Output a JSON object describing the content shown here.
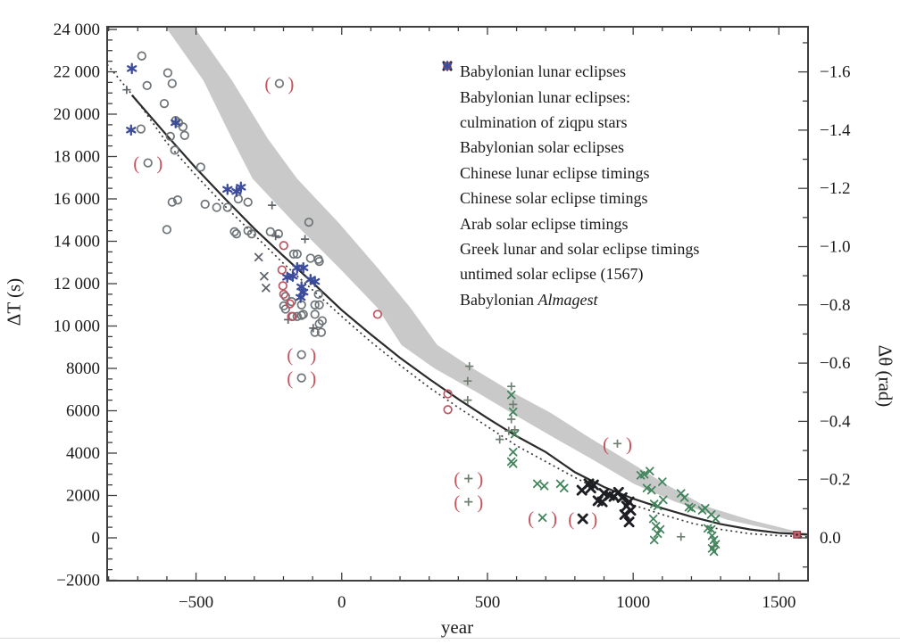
{
  "figure": {
    "xlabel": "year",
    "ylabel_left": "ΔT (s)",
    "ylabel_right": "Δθ (rad)"
  },
  "colors": {
    "frame": "#3f3f3f",
    "text": "#1a1a1a",
    "band": "#c9c9c9",
    "solid_curve": "#2b2b2b",
    "dashed_curve": "#3a3a3a",
    "parens": "#c3555e",
    "gray_marker": "#6e7478",
    "gray_dark_marker": "#5f646a",
    "green_gray_marker": "#6f7f72",
    "green_marker": "#43855c",
    "black_marker": "#1c1e22",
    "red_marker": "#c05662",
    "red_fill": "#c4636c",
    "blue_marker": "#3c4c9d"
  },
  "axes": {
    "x": {
      "min": -805,
      "max": 1600,
      "major_values": [
        -500,
        0,
        500,
        1000,
        1500
      ],
      "major_labels": [
        "−500",
        "0",
        "500",
        "1000",
        "1500"
      ],
      "minor_step": 100
    },
    "y_left": {
      "min": -2000,
      "max": 24000,
      "major_values": [
        24000,
        22000,
        20000,
        18000,
        16000,
        14000,
        12000,
        10000,
        8000,
        6000,
        4000,
        2000,
        0,
        -2000
      ],
      "major_labels": [
        "24 000",
        "22 000",
        "20 000",
        "18 000",
        "16 000",
        "14 000",
        "12 000",
        "10 000",
        "8000",
        "6000",
        "4000",
        "2000",
        "0",
        "−2000"
      ],
      "minor_step": 500
    },
    "y_right": {
      "major_values": [
        -1.6,
        -1.4,
        -1.2,
        -1.0,
        -0.8,
        -0.6,
        -0.4,
        -0.2,
        0.0
      ],
      "major_labels": [
        "−1.6",
        "−1.4",
        "−1.2",
        "−1.0",
        "−0.8",
        "−0.6",
        "−0.4",
        "−0.2",
        "0.0"
      ],
      "minor_step": 0.1,
      "minor_min": -1.7,
      "minor_max": 0.1
    }
  },
  "legend": {
    "items": [
      {
        "series": "babylonian_lunar",
        "label": "Babylonian lunar eclipses"
      },
      {
        "series": "ziqpu",
        "label": "Babylonian lunar eclipses:",
        "label_line2": "culmination of ziqpu stars"
      },
      {
        "series": "babylonian_solar",
        "label": "Babylonian solar eclipses"
      },
      {
        "series": "chinese_lunar",
        "label": "Chinese lunar eclipse timings"
      },
      {
        "series": "chinese_solar",
        "label": "Chinese solar eclipse timings"
      },
      {
        "series": "arab_solar",
        "label": "Arab solar eclipse timings"
      },
      {
        "series": "greek",
        "label": "Greek lunar and solar eclipse timings"
      },
      {
        "series": "untimed",
        "label": "untimed solar eclipse (1567)"
      },
      {
        "series": "almagest",
        "label": "Babylonian ",
        "label_italic": "Almagest"
      }
    ]
  },
  "chart_data": {
    "type": "scatter",
    "title": "",
    "xlabel": "year",
    "ylabel": "ΔT (s)",
    "ylabel_secondary": "Δθ (rad)",
    "xlim": [
      -805,
      1600
    ],
    "ylim": [
      -2000,
      24000
    ],
    "ylim_secondary_rad": [
      -1.83,
      0.15
    ],
    "grid": false,
    "legend_position": "upper right inside",
    "series": [
      {
        "id": "babylonian_lunar",
        "name": "Babylonian lunar eclipses",
        "marker": "circle",
        "color": "#6e7478",
        "points": [
          [
            -686,
            22750
          ],
          [
            -668,
            21350
          ],
          [
            -597,
            21950
          ],
          [
            -582,
            21450
          ],
          [
            -609,
            20500
          ],
          [
            -570,
            19700
          ],
          [
            -689,
            19300
          ],
          [
            -560,
            19600
          ],
          [
            -588,
            18950
          ],
          [
            -545,
            19400
          ],
          [
            -539,
            19000
          ],
          [
            -573,
            18300
          ],
          [
            -484,
            17500
          ],
          [
            -563,
            15950
          ],
          [
            -582,
            15850
          ],
          [
            -469,
            15750
          ],
          [
            -429,
            15600
          ],
          [
            -392,
            15600
          ],
          [
            -355,
            16000
          ],
          [
            -322,
            15850
          ],
          [
            -600,
            14550
          ],
          [
            -368,
            14450
          ],
          [
            -361,
            14350
          ],
          [
            -322,
            14500
          ],
          [
            -309,
            14350
          ],
          [
            -245,
            14450
          ],
          [
            -217,
            14350
          ],
          [
            -113,
            14900
          ],
          [
            -165,
            13400
          ],
          [
            -153,
            13400
          ],
          [
            -107,
            13200
          ],
          [
            -80,
            13150
          ],
          [
            -77,
            13050
          ],
          [
            -193,
            11400
          ],
          [
            -199,
            10950
          ],
          [
            -193,
            10800
          ],
          [
            -172,
            11150
          ],
          [
            -168,
            10450
          ],
          [
            -153,
            10450
          ],
          [
            -138,
            11000
          ],
          [
            -138,
            10500
          ],
          [
            -132,
            10550
          ],
          [
            -92,
            11000
          ],
          [
            -92,
            10550
          ],
          [
            -80,
            11500
          ],
          [
            -77,
            11000
          ],
          [
            -77,
            10100
          ],
          [
            -70,
            9700
          ],
          [
            -92,
            9700
          ],
          [
            -67,
            10250
          ]
        ]
      },
      {
        "id": "ziqpu",
        "name": "Babylonian lunar eclipses: culmination of ziqpu stars",
        "marker": "plus",
        "color": "#5f646a",
        "points": [
          [
            -738,
            21150
          ],
          [
            -239,
            15700
          ],
          [
            -227,
            14250
          ],
          [
            -126,
            14100
          ],
          [
            -184,
            10300
          ],
          [
            -98,
            9900
          ]
        ]
      },
      {
        "id": "babylonian_solar",
        "name": "Babylonian solar eclipses",
        "marker": "x",
        "color": "#5f646a",
        "points": [
          [
            -285,
            13250
          ],
          [
            -266,
            12350
          ],
          [
            -260,
            11800
          ]
        ]
      },
      {
        "id": "chinese_lunar",
        "name": "Chinese lunar eclipse timings",
        "marker": "plus",
        "color": "#6f7f72",
        "points": [
          [
            438,
            8100
          ],
          [
            432,
            7400
          ],
          [
            432,
            6500
          ],
          [
            588,
            6300
          ],
          [
            582,
            7150
          ],
          [
            582,
            5600
          ],
          [
            594,
            5100
          ],
          [
            573,
            5050
          ],
          [
            542,
            4650
          ],
          [
            1164,
            50
          ],
          [
            1277,
            -400
          ]
        ]
      },
      {
        "id": "chinese_solar",
        "name": "Chinese solar eclipse timings",
        "marker": "x",
        "color": "#43855c",
        "points": [
          [
            582,
            6750
          ],
          [
            588,
            5950
          ],
          [
            594,
            4900
          ],
          [
            588,
            4050
          ],
          [
            582,
            3600
          ],
          [
            588,
            3500
          ],
          [
            671,
            2550
          ],
          [
            695,
            2450
          ],
          [
            750,
            2550
          ],
          [
            763,
            2350
          ],
          [
            1026,
            2950
          ],
          [
            1038,
            3000
          ],
          [
            1047,
            2350
          ],
          [
            1057,
            3150
          ],
          [
            1063,
            2250
          ],
          [
            1069,
            900
          ],
          [
            1072,
            1600
          ],
          [
            1072,
            -100
          ],
          [
            1078,
            550
          ],
          [
            1084,
            1500
          ],
          [
            1084,
            200
          ],
          [
            1093,
            400
          ],
          [
            1100,
            2650
          ],
          [
            1103,
            1800
          ],
          [
            1164,
            2100
          ],
          [
            1176,
            1900
          ],
          [
            1191,
            1450
          ],
          [
            1200,
            1400
          ],
          [
            1237,
            1300
          ],
          [
            1247,
            1400
          ],
          [
            1256,
            450
          ],
          [
            1268,
            1100
          ],
          [
            1268,
            400
          ],
          [
            1271,
            100
          ],
          [
            1271,
            -500
          ],
          [
            1277,
            -100
          ],
          [
            1277,
            -650
          ],
          [
            1283,
            900
          ],
          [
            1283,
            -300
          ]
        ]
      },
      {
        "id": "arab_solar",
        "name": "Arab solar eclipse timings",
        "marker": "x-bold",
        "color": "#1c1e22",
        "points": [
          [
            824,
            2250
          ],
          [
            848,
            2550
          ],
          [
            855,
            2350
          ],
          [
            864,
            2500
          ],
          [
            879,
            1750
          ],
          [
            894,
            1700
          ],
          [
            900,
            2100
          ],
          [
            919,
            2000
          ],
          [
            934,
            1950
          ],
          [
            950,
            2150
          ],
          [
            962,
            1900
          ],
          [
            971,
            1100
          ],
          [
            977,
            1500
          ],
          [
            986,
            1700
          ],
          [
            986,
            750
          ],
          [
            992,
            1300
          ]
        ]
      },
      {
        "id": "greek",
        "name": "Greek lunar and solar eclipse timings",
        "marker": "circle",
        "color": "#c05662",
        "points": [
          [
            -199,
            13800
          ],
          [
            -205,
            12650
          ],
          [
            -202,
            11900
          ],
          [
            -199,
            11500
          ],
          [
            -178,
            11050
          ],
          [
            -172,
            10450
          ],
          [
            123,
            10550
          ],
          [
            364,
            6800
          ],
          [
            364,
            6050
          ]
        ]
      },
      {
        "id": "untimed",
        "name": "untimed solar eclipse (1567)",
        "marker": "square",
        "color": "#c4636c",
        "points": [
          [
            1562,
            150
          ]
        ]
      },
      {
        "id": "almagest",
        "name": "Babylonian Almagest",
        "marker": "star6",
        "color": "#3c4c9d",
        "points": [
          [
            -720,
            22150
          ],
          [
            -723,
            19250
          ],
          [
            -570,
            19600
          ],
          [
            -392,
            16450
          ],
          [
            -361,
            16350
          ],
          [
            -346,
            16550
          ],
          [
            -187,
            12300
          ],
          [
            -168,
            12350
          ],
          [
            -153,
            12750
          ],
          [
            -141,
            11350
          ],
          [
            -138,
            11850
          ],
          [
            -132,
            12750
          ],
          [
            -132,
            11600
          ],
          [
            -107,
            12200
          ],
          [
            -92,
            12100
          ]
        ]
      }
    ],
    "parenthesized_points": [
      {
        "series": "babylonian_lunar",
        "year": -665,
        "dt": 17700
      },
      {
        "series": "babylonian_lunar",
        "year": -214,
        "dt": 21450
      },
      {
        "series": "babylonian_lunar",
        "year": -138,
        "dt": 8650
      },
      {
        "series": "babylonian_lunar",
        "year": -138,
        "dt": 7550
      },
      {
        "series": "chinese_lunar",
        "year": 435,
        "dt": 2800
      },
      {
        "series": "chinese_lunar",
        "year": 435,
        "dt": 1700
      },
      {
        "series": "chinese_lunar",
        "year": 946,
        "dt": 4450
      },
      {
        "series": "chinese_solar",
        "year": 689,
        "dt": 950
      },
      {
        "series": "arab_solar",
        "year": 827,
        "dt": 900
      }
    ],
    "curves": {
      "solid_fit": [
        [
          -720,
          20900
        ],
        [
          -600,
          19000
        ],
        [
          -500,
          17450
        ],
        [
          -400,
          16000
        ],
        [
          -300,
          14600
        ],
        [
          -200,
          13300
        ],
        [
          -100,
          12050
        ],
        [
          0,
          10750
        ],
        [
          100,
          9600
        ],
        [
          200,
          8500
        ],
        [
          300,
          7500
        ],
        [
          400,
          6550
        ],
        [
          500,
          5650
        ],
        [
          600,
          4800
        ],
        [
          700,
          4050
        ],
        [
          800,
          3100
        ],
        [
          900,
          2400
        ],
        [
          1000,
          1850
        ],
        [
          1100,
          1400
        ],
        [
          1200,
          1000
        ],
        [
          1300,
          650
        ],
        [
          1400,
          400
        ],
        [
          1500,
          230
        ],
        [
          1600,
          150
        ]
      ],
      "dashed_fit": [
        [
          -805,
          22350
        ],
        [
          -700,
          20600
        ],
        [
          -600,
          18650
        ],
        [
          -500,
          17100
        ],
        [
          -400,
          15650
        ],
        [
          -300,
          14300
        ],
        [
          -200,
          12950
        ],
        [
          -100,
          11700
        ],
        [
          0,
          10450
        ],
        [
          100,
          9250
        ],
        [
          200,
          8150
        ],
        [
          300,
          7100
        ],
        [
          400,
          6150
        ],
        [
          500,
          5250
        ],
        [
          600,
          4350
        ],
        [
          700,
          3600
        ],
        [
          800,
          2850
        ],
        [
          900,
          2150
        ],
        [
          1000,
          1550
        ],
        [
          1100,
          1100
        ],
        [
          1200,
          700
        ],
        [
          1300,
          400
        ],
        [
          1400,
          200
        ],
        [
          1500,
          100
        ],
        [
          1600,
          50
        ]
      ]
    },
    "uncertainty_band": {
      "upper": [
        [
          -508,
          24150
        ],
        [
          -377,
          21600
        ],
        [
          -254,
          18850
        ],
        [
          -153,
          16950
        ],
        [
          -9,
          14850
        ],
        [
          123,
          12750
        ],
        [
          236,
          10850
        ],
        [
          328,
          9100
        ],
        [
          450,
          8000
        ],
        [
          588,
          6850
        ],
        [
          717,
          5900
        ],
        [
          848,
          4750
        ],
        [
          962,
          3800
        ],
        [
          1109,
          2550
        ],
        [
          1247,
          1500
        ],
        [
          1400,
          850
        ],
        [
          1562,
          300
        ],
        [
          1600,
          220
        ]
      ],
      "lower": [
        [
          -606,
          24150
        ],
        [
          -475,
          21600
        ],
        [
          -377,
          18850
        ],
        [
          -306,
          16950
        ],
        [
          -162,
          14850
        ],
        [
          -9,
          12750
        ],
        [
          123,
          10850
        ],
        [
          205,
          9100
        ],
        [
          318,
          8000
        ],
        [
          466,
          6850
        ],
        [
          582,
          5900
        ],
        [
          726,
          4750
        ],
        [
          848,
          3800
        ],
        [
          1002,
          2550
        ],
        [
          1145,
          1700
        ],
        [
          1323,
          850
        ],
        [
          1492,
          350
        ],
        [
          1583,
          150
        ],
        [
          1600,
          130
        ]
      ]
    }
  }
}
